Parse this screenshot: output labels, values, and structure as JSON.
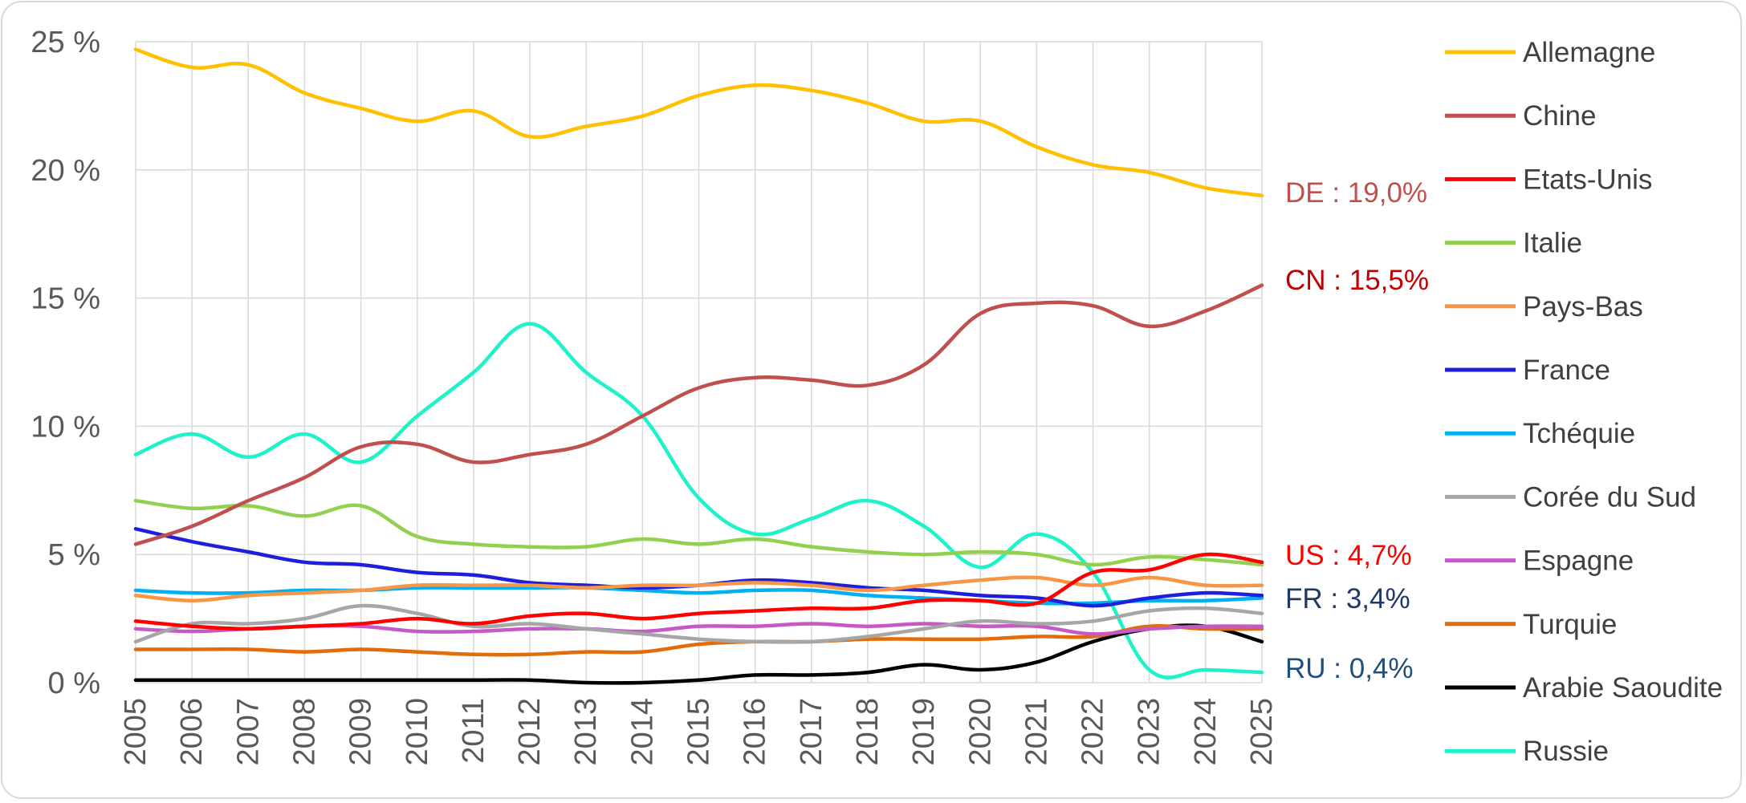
{
  "chart_data": {
    "type": "line",
    "title": "",
    "xlabel": "",
    "ylabel": "",
    "x": [
      "2005",
      "2006",
      "2007",
      "2008",
      "2009",
      "2010",
      "2011",
      "2012",
      "2013",
      "2014",
      "2015",
      "2016",
      "2017",
      "2018",
      "2019",
      "2020",
      "2021",
      "2022",
      "2023",
      "2024",
      "2025"
    ],
    "y_ticks": [
      "0 %",
      "5 %",
      "10 %",
      "15 %",
      "20 %",
      "25 %"
    ],
    "ylim": [
      0,
      25
    ],
    "grid": true,
    "legend_position": "right",
    "series": [
      {
        "name": "Allemagne",
        "color": "#FFC000",
        "values": [
          24.7,
          24.0,
          24.1,
          23.0,
          22.4,
          21.9,
          22.3,
          21.3,
          21.7,
          22.1,
          22.9,
          23.3,
          23.1,
          22.6,
          21.9,
          21.9,
          20.9,
          20.2,
          19.9,
          19.3,
          19.0
        ]
      },
      {
        "name": "Chine",
        "color": "#C0504D",
        "values": [
          5.4,
          6.1,
          7.1,
          8.0,
          9.2,
          9.3,
          8.6,
          8.9,
          9.3,
          10.4,
          11.5,
          11.9,
          11.8,
          11.6,
          12.4,
          14.4,
          14.8,
          14.7,
          13.9,
          14.5,
          15.5
        ]
      },
      {
        "name": "Etats-Unis",
        "color": "#FF0000",
        "values": [
          2.4,
          2.2,
          2.1,
          2.2,
          2.3,
          2.5,
          2.3,
          2.6,
          2.7,
          2.5,
          2.7,
          2.8,
          2.9,
          2.9,
          3.2,
          3.2,
          3.1,
          4.3,
          4.4,
          5.0,
          4.7
        ]
      },
      {
        "name": "Italie",
        "color": "#92D050",
        "values": [
          7.1,
          6.8,
          6.9,
          6.5,
          6.9,
          5.7,
          5.4,
          5.3,
          5.3,
          5.6,
          5.4,
          5.6,
          5.3,
          5.1,
          5.0,
          5.1,
          5.0,
          4.6,
          4.9,
          4.8,
          4.6
        ]
      },
      {
        "name": "Pays-Bas",
        "color": "#F79646",
        "values": [
          3.4,
          3.2,
          3.4,
          3.5,
          3.6,
          3.8,
          3.8,
          3.8,
          3.7,
          3.8,
          3.8,
          3.9,
          3.8,
          3.6,
          3.8,
          4.0,
          4.1,
          3.8,
          4.1,
          3.8,
          3.8
        ]
      },
      {
        "name": "France",
        "color": "#1F1FDB",
        "values": [
          6.0,
          5.5,
          5.1,
          4.7,
          4.6,
          4.3,
          4.2,
          3.9,
          3.8,
          3.7,
          3.8,
          4.0,
          3.9,
          3.7,
          3.6,
          3.4,
          3.3,
          3.0,
          3.3,
          3.5,
          3.4
        ]
      },
      {
        "name": "Tchéquie",
        "color": "#00B0F0",
        "values": [
          3.6,
          3.5,
          3.5,
          3.6,
          3.6,
          3.7,
          3.7,
          3.7,
          3.7,
          3.6,
          3.5,
          3.6,
          3.6,
          3.4,
          3.3,
          3.2,
          3.1,
          3.1,
          3.2,
          3.2,
          3.3
        ]
      },
      {
        "name": "Corée du Sud",
        "color": "#A6A6A6",
        "values": [
          1.6,
          2.3,
          2.3,
          2.5,
          3.0,
          2.7,
          2.2,
          2.3,
          2.1,
          1.9,
          1.7,
          1.6,
          1.6,
          1.8,
          2.1,
          2.4,
          2.3,
          2.4,
          2.8,
          2.9,
          2.7
        ]
      },
      {
        "name": "Espagne",
        "color": "#C55AC6",
        "values": [
          2.1,
          2.0,
          2.1,
          2.2,
          2.2,
          2.0,
          2.0,
          2.1,
          2.1,
          2.0,
          2.2,
          2.2,
          2.3,
          2.2,
          2.3,
          2.2,
          2.2,
          1.9,
          2.1,
          2.2,
          2.2
        ]
      },
      {
        "name": "Turquie",
        "color": "#E36C0A",
        "values": [
          1.3,
          1.3,
          1.3,
          1.2,
          1.3,
          1.2,
          1.1,
          1.1,
          1.2,
          1.2,
          1.5,
          1.6,
          1.6,
          1.7,
          1.7,
          1.7,
          1.8,
          1.8,
          2.2,
          2.1,
          2.1
        ]
      },
      {
        "name": "Arabie Saoudite",
        "color": "#000000",
        "values": [
          0.1,
          0.1,
          0.1,
          0.1,
          0.1,
          0.1,
          0.1,
          0.1,
          0.0,
          0.0,
          0.1,
          0.3,
          0.3,
          0.4,
          0.7,
          0.5,
          0.8,
          1.6,
          2.1,
          2.2,
          1.6
        ]
      },
      {
        "name": "Russie",
        "color": "#1EF2C9",
        "values": [
          8.9,
          9.7,
          8.8,
          9.7,
          8.6,
          10.4,
          12.1,
          14.0,
          12.1,
          10.4,
          7.2,
          5.8,
          6.4,
          7.1,
          6.1,
          4.5,
          5.8,
          4.3,
          0.5,
          0.5,
          0.4
        ]
      }
    ],
    "annotations": [
      {
        "text": "DE : 19,0%",
        "color": "#C0504D",
        "series": "Allemagne",
        "anchor_value": 19.0
      },
      {
        "text": "CN : 15,5%",
        "color": "#C00000",
        "series": "Chine",
        "anchor_value": 15.5
      },
      {
        "text": "US : 4,7%",
        "color": "#FF0000",
        "series": "Etats-Unis",
        "anchor_value": 4.7
      },
      {
        "text": "FR : 3,4%",
        "color": "#1F3864",
        "series": "France",
        "anchor_value": 3.4
      },
      {
        "text": "RU : 0,4%",
        "color": "#1F4E79",
        "series": "Russie",
        "anchor_value": 0.4
      }
    ]
  }
}
